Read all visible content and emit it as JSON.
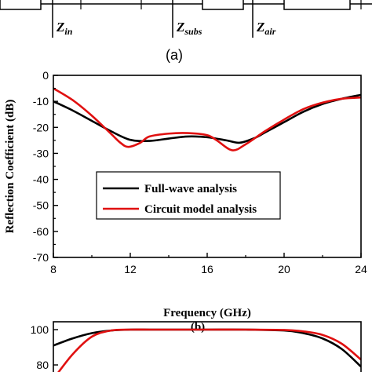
{
  "circuit": {
    "labels": [
      {
        "main": "Z",
        "sub": "in"
      },
      {
        "main": "Z",
        "sub": "subs"
      },
      {
        "main": "Z",
        "sub": "air"
      }
    ],
    "caption": "(a)"
  },
  "chart_data": [
    {
      "type": "line",
      "xlabel": "Frequency (GHz)",
      "ylabel": "Reflection Coefficient (dB)",
      "xlim": [
        8,
        24
      ],
      "ylim": [
        -70,
        0
      ],
      "xticks": [
        8,
        12,
        16,
        20,
        24
      ],
      "yticks": [
        0,
        -10,
        -20,
        -30,
        -40,
        -50,
        -60,
        -70
      ],
      "grid": false,
      "legend_position": "center-left",
      "caption": "(b)",
      "series": [
        {
          "name": "Full-wave analysis",
          "color": "#000000",
          "x": [
            8,
            9,
            10,
            11,
            12,
            13,
            14,
            15,
            16,
            17,
            17.7,
            18.5,
            19,
            20,
            21,
            22,
            23,
            24
          ],
          "y": [
            -10,
            -13.5,
            -17.5,
            -21.5,
            -24.8,
            -25.2,
            -24.3,
            -23.5,
            -23.8,
            -25,
            -25.9,
            -24,
            -22,
            -18,
            -14,
            -11,
            -9,
            -7.5
          ]
        },
        {
          "name": "Circuit model analysis",
          "color": "#e01010",
          "x": [
            8,
            9,
            10,
            11,
            11.5,
            11.9,
            12.5,
            13,
            14,
            15,
            16,
            16.5,
            17.3,
            18,
            19,
            20,
            21,
            22,
            23,
            24
          ],
          "y": [
            -5,
            -9.5,
            -15.5,
            -22.5,
            -26,
            -27.5,
            -26,
            -23.5,
            -22.4,
            -22.2,
            -23,
            -25,
            -28.8,
            -26.5,
            -21.5,
            -17,
            -13,
            -10.5,
            -9,
            -8.5
          ]
        }
      ]
    },
    {
      "type": "line",
      "xlim": [
        8,
        24
      ],
      "yticks": [
        100,
        80
      ],
      "series": [
        {
          "color": "#000000",
          "x": [
            8,
            9,
            10,
            11,
            12,
            13,
            14,
            16,
            18,
            20,
            21,
            22,
            23,
            24
          ],
          "y": [
            91,
            95,
            98,
            99.5,
            100,
            100,
            100,
            100,
            100,
            99.5,
            98,
            95,
            89,
            79
          ]
        },
        {
          "color": "#e01010",
          "x": [
            8,
            9,
            10,
            11,
            12,
            13,
            14,
            16,
            18,
            20,
            21,
            22,
            23,
            24
          ],
          "y": [
            72,
            86,
            96,
            99.5,
            100,
            100,
            100,
            100,
            100,
            99.8,
            99,
            97,
            92,
            83
          ]
        }
      ]
    }
  ]
}
